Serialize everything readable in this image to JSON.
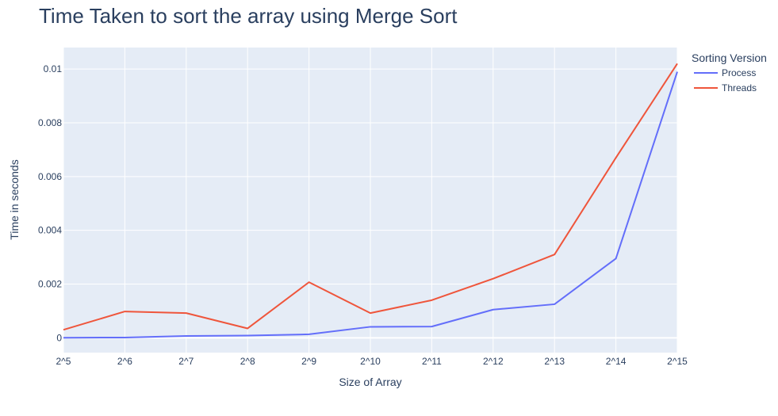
{
  "chart_data": {
    "type": "line",
    "title": "Time Taken to sort the array using Merge Sort",
    "xlabel": "Size of Array",
    "ylabel": "Time in seconds",
    "categories": [
      "2^5",
      "2^6",
      "2^7",
      "2^8",
      "2^9",
      "2^10",
      "2^11",
      "2^12",
      "2^13",
      "2^14",
      "2^15"
    ],
    "ylim": [
      -0.00055,
      0.0108
    ],
    "yticks": [
      0,
      0.002,
      0.004,
      0.006,
      0.008,
      0.01
    ],
    "ytick_labels": [
      "0",
      "0.002",
      "0.004",
      "0.006",
      "0.008",
      "0.01"
    ],
    "grid": true,
    "legend": {
      "title": "Sorting Version",
      "position": "top-right"
    },
    "series": [
      {
        "name": "Process",
        "color": "#636efa",
        "values": [
          3e-06,
          1.2e-05,
          6.8e-05,
          8.5e-05,
          0.00013,
          0.00041,
          0.00042,
          0.00105,
          0.00125,
          0.00295,
          0.0099
        ]
      },
      {
        "name": "Threads",
        "color": "#ef553b",
        "values": [
          0.0003,
          0.00098,
          0.00092,
          0.00035,
          0.00207,
          0.00092,
          0.0014,
          0.0022,
          0.0031,
          0.0067,
          0.0102
        ]
      }
    ],
    "plot_bg": "#e5ecf6"
  }
}
